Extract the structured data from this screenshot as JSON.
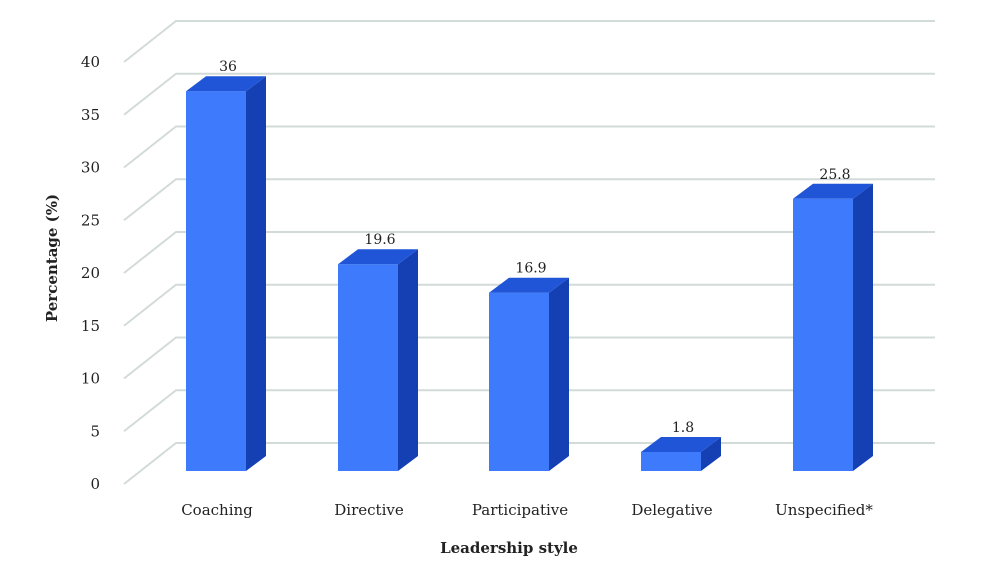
{
  "chart_data": {
    "type": "bar",
    "style": "3d-column",
    "categories": [
      "Coaching",
      "Directive",
      "Participative",
      "Delegative",
      "Unspecified*"
    ],
    "values": [
      36,
      19.6,
      16.9,
      1.8,
      25.8
    ],
    "data_labels": [
      "36",
      "19.6",
      "16.9",
      "1.8",
      "25.8"
    ],
    "xlabel": "Leadership style",
    "ylabel": "Percentage (%)",
    "ylim": [
      0,
      40
    ],
    "yticks": [
      0,
      5,
      10,
      15,
      20,
      25,
      30,
      35,
      40
    ],
    "grid": true,
    "legend": "none",
    "colors": {
      "front": "#3d7bfc",
      "side": "#1540b3",
      "top": "#1f55d6",
      "grid": "#d3dbd8"
    }
  }
}
